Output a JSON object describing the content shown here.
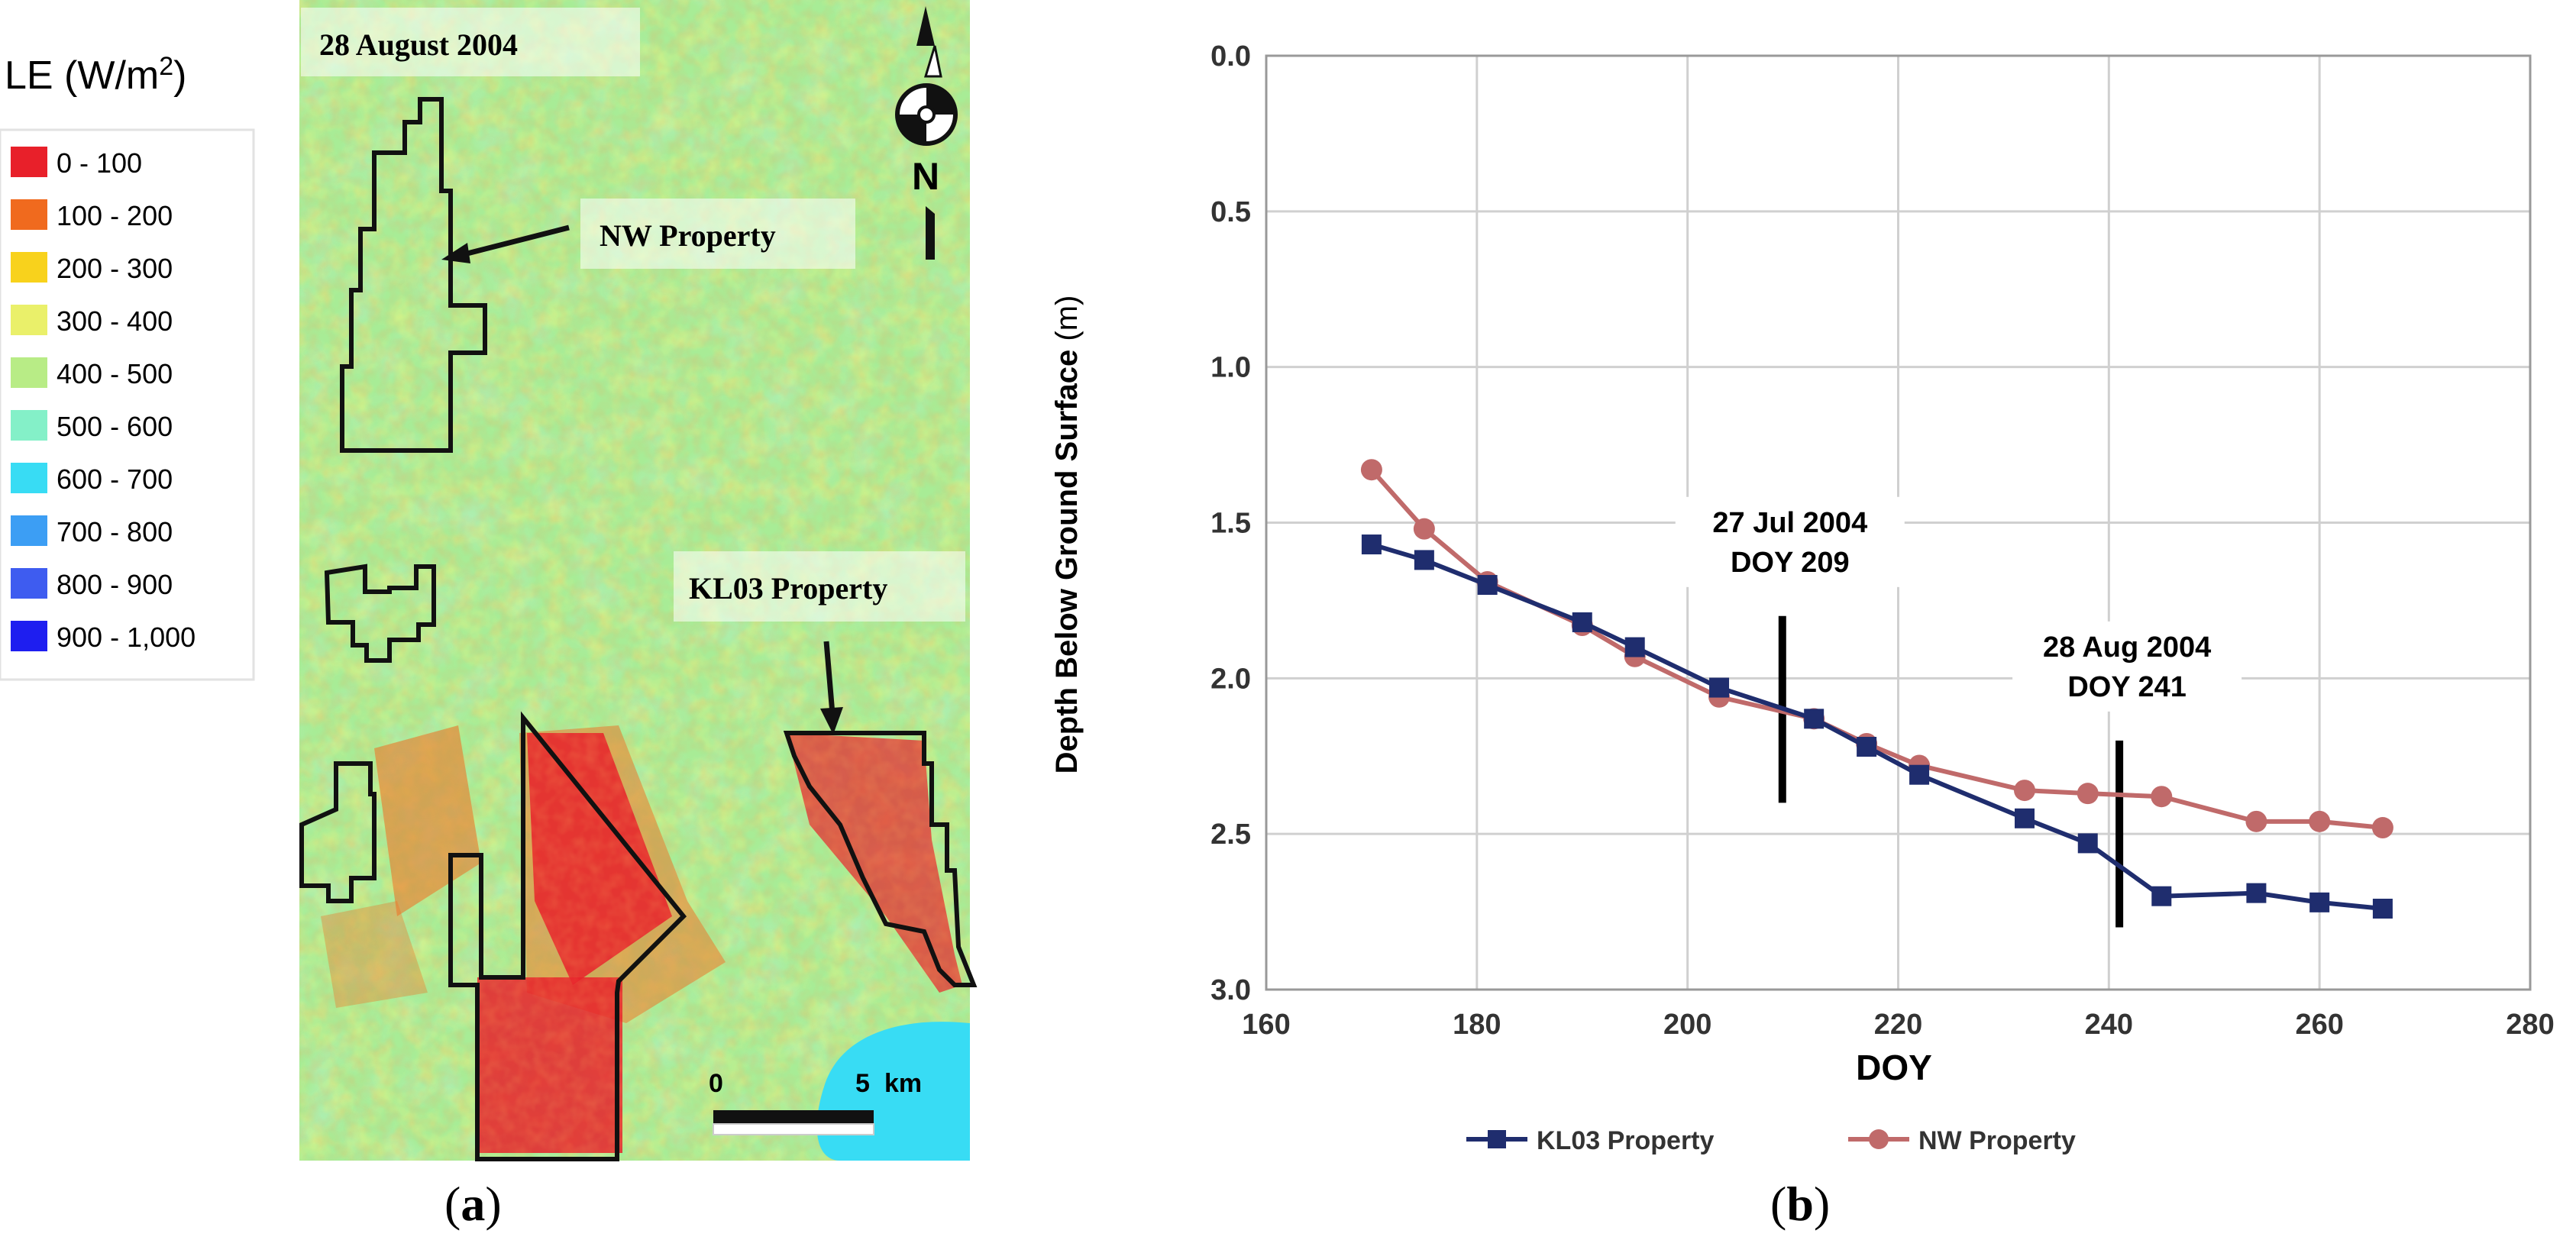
{
  "figure": {
    "caption_a": "a",
    "caption_b": "b"
  },
  "map": {
    "date_label": "28 August 2004",
    "legend_title": "LE (W/m",
    "legend_title_sup": "2",
    "legend_title_close": ")",
    "legend": [
      {
        "label": "0 - 100",
        "color": "#e8202a"
      },
      {
        "label": "100 - 200",
        "color": "#f06a1e"
      },
      {
        "label": "200 - 300",
        "color": "#f8d21c"
      },
      {
        "label": "300 - 400",
        "color": "#eaf06a"
      },
      {
        "label": "400 - 500",
        "color": "#b8ec86"
      },
      {
        "label": "500 - 600",
        "color": "#84f0c8"
      },
      {
        "label": "600 - 700",
        "color": "#38dcf4"
      },
      {
        "label": "700 - 800",
        "color": "#3c9ef4"
      },
      {
        "label": "800 - 900",
        "color": "#3e5cf0"
      },
      {
        "label": "900 - 1,000",
        "color": "#1e1ef0"
      }
    ],
    "label_nw": "NW Property",
    "label_kl03": "KL03 Property",
    "north_label": "N",
    "scale_zero": "0",
    "scale_five": "5",
    "scale_unit": "km",
    "lake_color": "#38dcf4",
    "background_color": "#a8ec96"
  },
  "chart_data": {
    "type": "line",
    "xlabel": "DOY",
    "ylabel": "Depth Below Ground Surface",
    "ylabel_unit": "(m)",
    "xlim": [
      160,
      280
    ],
    "ylim": [
      0.0,
      3.0
    ],
    "y_inverted": true,
    "grid": true,
    "x_ticks": [
      "160",
      "180",
      "200",
      "220",
      "240",
      "260",
      "280"
    ],
    "y_ticks": [
      "0.0",
      "0.5",
      "1.0",
      "1.5",
      "2.0",
      "2.5",
      "3.0"
    ],
    "legend_position": "bottom",
    "series": [
      {
        "name": "KL03 Property",
        "color": "#1f2d6e",
        "marker": "square",
        "x": [
          170,
          175,
          181,
          190,
          195,
          203,
          212,
          217,
          222,
          232,
          238,
          245,
          254,
          260,
          266
        ],
        "y": [
          1.57,
          1.62,
          1.7,
          1.82,
          1.9,
          2.03,
          2.13,
          2.22,
          2.31,
          2.45,
          2.53,
          2.7,
          2.69,
          2.72,
          2.74
        ]
      },
      {
        "name": "NW Property",
        "color": "#c06a6a",
        "marker": "circle",
        "x": [
          170,
          175,
          181,
          190,
          195,
          203,
          212,
          217,
          222,
          232,
          238,
          245,
          254,
          260,
          266
        ],
        "y": [
          1.33,
          1.52,
          1.69,
          1.83,
          1.93,
          2.06,
          2.13,
          2.21,
          2.28,
          2.36,
          2.37,
          2.38,
          2.46,
          2.46,
          2.48
        ]
      }
    ],
    "annotations": [
      {
        "line1": "27 Jul 2004",
        "line2": "DOY 209",
        "x": 209,
        "y_top": 1.8,
        "y_bottom": 2.4
      },
      {
        "line1": "28 Aug 2004",
        "line2": "DOY 241",
        "x": 241,
        "y_top": 2.2,
        "y_bottom": 2.8
      }
    ]
  }
}
